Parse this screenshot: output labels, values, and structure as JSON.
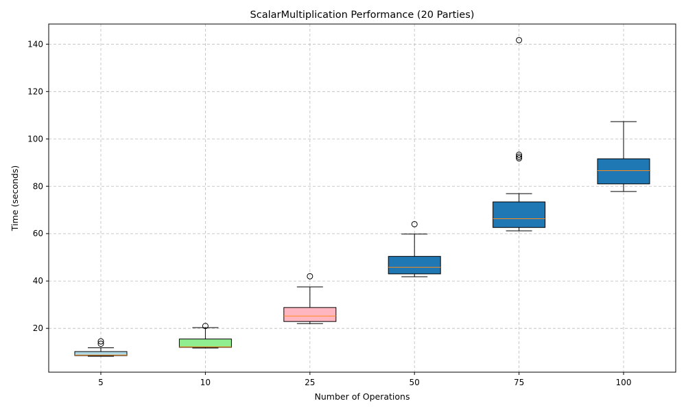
{
  "chart_data": {
    "type": "box",
    "title": "ScalarMultiplication Performance (20 Parties)",
    "xlabel": "Number of Operations",
    "ylabel": "Time (seconds)",
    "ylim": [
      1.5,
      148.5
    ],
    "yticks": [
      20,
      40,
      60,
      80,
      100,
      120,
      140
    ],
    "grid": true,
    "median_color": "#ff8c1a",
    "categories": [
      "5",
      "10",
      "25",
      "50",
      "75",
      "100"
    ],
    "boxes": [
      {
        "category": "5",
        "whisker_low": 8.2,
        "q1": 8.5,
        "median": 8.7,
        "q3": 10.2,
        "whisker_high": 11.8,
        "outliers": [
          13.5,
          14.5
        ],
        "color": "#add8e6"
      },
      {
        "category": "10",
        "whisker_low": 11.7,
        "q1": 12.0,
        "median": 12.2,
        "q3": 15.5,
        "whisker_high": 20.3,
        "outliers": [
          21.0
        ],
        "color": "#90ee90"
      },
      {
        "category": "25",
        "whisker_low": 22.0,
        "q1": 22.9,
        "median": 25.2,
        "q3": 28.8,
        "whisker_high": 37.5,
        "outliers": [
          42.0
        ],
        "color": "#ffb6c1"
      },
      {
        "category": "50",
        "whisker_low": 41.8,
        "q1": 43.0,
        "median": 45.8,
        "q3": 50.4,
        "whisker_high": 59.8,
        "outliers": [
          64.0
        ],
        "color": "#1f77b4"
      },
      {
        "category": "75",
        "whisker_low": 61.2,
        "q1": 62.6,
        "median": 66.3,
        "q3": 73.4,
        "whisker_high": 76.9,
        "outliers": [
          91.8,
          92.5,
          93.3,
          141.7
        ],
        "color": "#1f77b4"
      },
      {
        "category": "100",
        "whisker_low": 77.8,
        "q1": 81.0,
        "median": 86.6,
        "q3": 91.6,
        "whisker_high": 107.3,
        "outliers": [],
        "color": "#1f77b4"
      }
    ]
  }
}
